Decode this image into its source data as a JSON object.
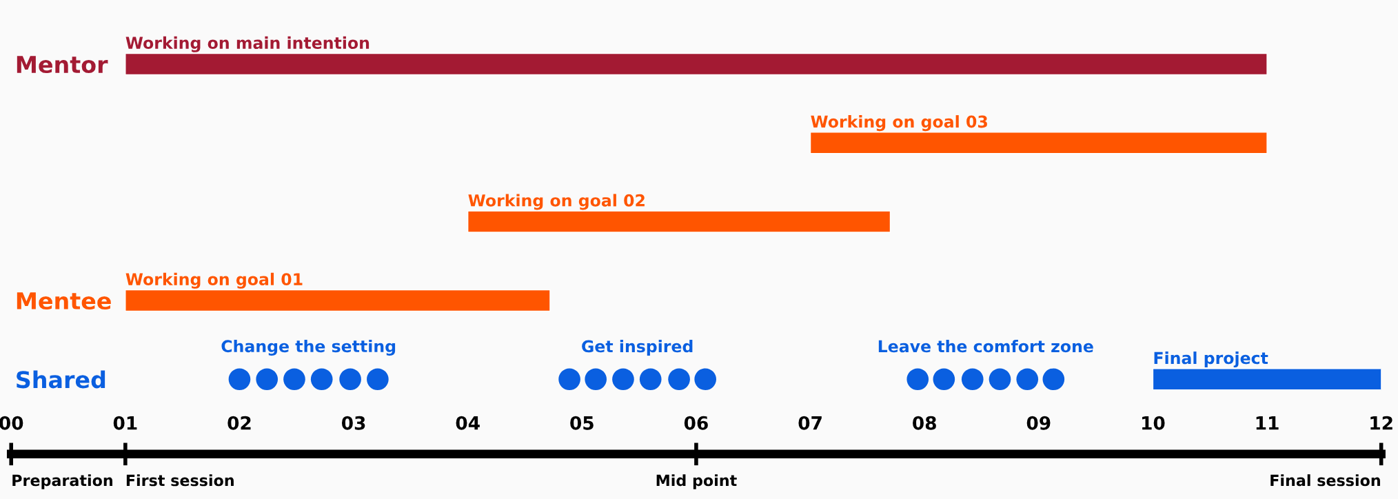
{
  "chart_data": {
    "type": "bar",
    "orientation": "horizontal",
    "categories": [
      "Mentor",
      null,
      null,
      "Mentee",
      "Shared"
    ],
    "series": [
      {
        "base": [
          1,
          7,
          4,
          1,
          10
        ],
        "values": [
          10,
          4,
          3.7,
          3.72,
          2
        ],
        "colors": [
          "#a31a33",
          "#ff5500",
          "#ff5500",
          "#ff5500",
          "#0a5fe0"
        ],
        "value_labels": [
          "Working on main intention",
          "Working on goal 03",
          "Working on goal 02",
          "Working on goal 01",
          "Final project"
        ]
      },
      {
        "type": "scatter",
        "color": "#0a5fe0",
        "values": [
          null,
          null,
          null,
          null,
          2.0
        ]
      },
      {
        "type": "scatter",
        "color": "#0a5fe0",
        "values": [
          null,
          null,
          null,
          null,
          2.24
        ]
      },
      {
        "type": "scatter",
        "color": "#0a5fe0",
        "values": [
          null,
          null,
          null,
          null,
          2.48
        ]
      },
      {
        "type": "scatter",
        "color": "#0a5fe0",
        "values": [
          null,
          null,
          null,
          null,
          2.72
        ]
      },
      {
        "type": "scatter",
        "color": "#0a5fe0",
        "values": [
          null,
          null,
          null,
          null,
          2.97
        ]
      },
      {
        "type": "scatter",
        "color": "#0a5fe0",
        "values": [
          null,
          null,
          null,
          null,
          3.21
        ]
      },
      {
        "type": "scatter",
        "color": "#0a5fe0",
        "values": [
          null,
          null,
          null,
          null,
          4.89
        ]
      },
      {
        "type": "scatter",
        "color": "#0a5fe0",
        "values": [
          null,
          null,
          null,
          null,
          5.12
        ]
      },
      {
        "type": "scatter",
        "color": "#0a5fe0",
        "values": [
          null,
          null,
          null,
          null,
          5.36
        ]
      },
      {
        "type": "scatter",
        "color": "#0a5fe0",
        "values": [
          null,
          null,
          null,
          null,
          5.6
        ]
      },
      {
        "type": "scatter",
        "color": "#0a5fe0",
        "values": [
          null,
          null,
          null,
          null,
          5.85
        ]
      },
      {
        "type": "scatter",
        "color": "#0a5fe0",
        "values": [
          null,
          null,
          null,
          null,
          6.08
        ]
      },
      {
        "type": "scatter",
        "color": "#0a5fe0",
        "values": [
          null,
          null,
          null,
          null,
          7.94
        ]
      },
      {
        "type": "scatter",
        "color": "#0a5fe0",
        "values": [
          null,
          null,
          null,
          null,
          8.17
        ]
      },
      {
        "type": "scatter",
        "color": "#0a5fe0",
        "values": [
          null,
          null,
          null,
          null,
          8.42
        ]
      },
      {
        "type": "scatter",
        "color": "#0a5fe0",
        "values": [
          null,
          null,
          null,
          null,
          8.66
        ]
      },
      {
        "type": "scatter",
        "color": "#0a5fe0",
        "values": [
          null,
          null,
          null,
          null,
          8.9
        ]
      },
      {
        "type": "scatter",
        "color": "#0a5fe0",
        "values": [
          null,
          null,
          null,
          null,
          9.13
        ]
      }
    ],
    "marker": "circle",
    "xlim": [
      0,
      12
    ],
    "xticks": [
      {
        "value": 0,
        "label": "00"
      },
      {
        "value": 1,
        "label": "01"
      },
      {
        "value": 2,
        "label": "02"
      },
      {
        "value": 3,
        "label": "03"
      },
      {
        "value": 4,
        "label": "04"
      },
      {
        "value": 5,
        "label": "05"
      },
      {
        "value": 6,
        "label": "06"
      },
      {
        "value": 7,
        "label": "07"
      },
      {
        "value": 8,
        "label": "08"
      },
      {
        "value": 9,
        "label": "09"
      },
      {
        "value": 10,
        "label": "10"
      },
      {
        "value": 11,
        "label": "11"
      },
      {
        "value": 12,
        "label": "12"
      }
    ],
    "ref_lines": [
      {
        "axis": "x",
        "value": 0,
        "label": "Preparation",
        "color": "#000000"
      },
      {
        "axis": "x",
        "value": 1,
        "label": "First session",
        "color": "#000000"
      },
      {
        "axis": "x",
        "value": 6,
        "label": "Mid point",
        "color": "#000000"
      },
      {
        "axis": "x",
        "value": 12,
        "label": "Final session",
        "color": "#000000"
      }
    ],
    "annotations": [
      "Change the setting",
      "Get inspired",
      "Leave the comfort zone"
    ],
    "grid": false,
    "legend": false
  }
}
